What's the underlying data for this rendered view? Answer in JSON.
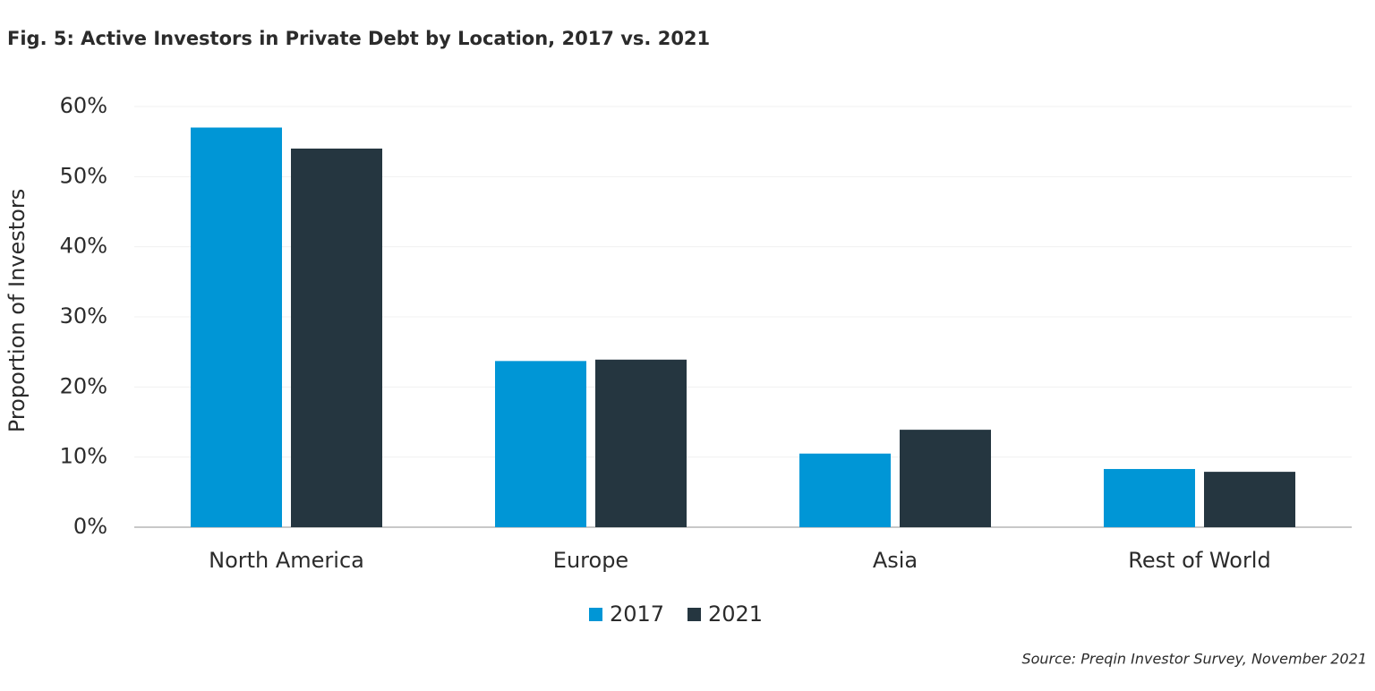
{
  "chart_data": {
    "type": "bar",
    "title": "Fig. 5: Active Investors in Private Debt by Location, 2017 vs. 2021",
    "y_label": "Proportion of Investors",
    "categories": [
      "North America",
      "Europe",
      "Asia",
      "Rest of World"
    ],
    "series": [
      {
        "name": "2017",
        "color": "#0096d6",
        "values": [
          57,
          23.7,
          10.5,
          8.3
        ]
      },
      {
        "name": "2021",
        "color": "#253640",
        "values": [
          54,
          23.9,
          13.9,
          7.9
        ]
      }
    ],
    "ylim": [
      0,
      60
    ],
    "yticks": [
      {
        "value": 0,
        "label": "0%"
      },
      {
        "value": 10,
        "label": "10%"
      },
      {
        "value": 20,
        "label": "20%"
      },
      {
        "value": 30,
        "label": "30%"
      },
      {
        "value": 40,
        "label": "40%"
      },
      {
        "value": 50,
        "label": "50%"
      },
      {
        "value": 60,
        "label": "60%"
      }
    ],
    "grid": true,
    "legend": "bottom",
    "source": "Source: Preqin Investor Survey, November 2021"
  }
}
